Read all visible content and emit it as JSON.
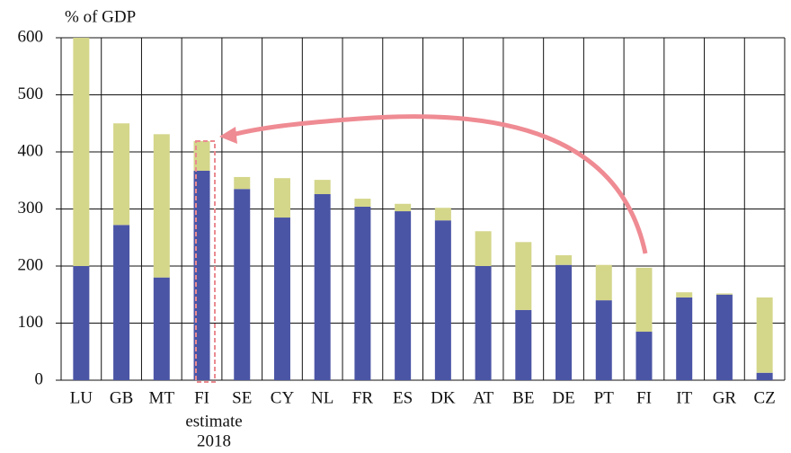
{
  "chart_data": {
    "type": "stacked-bar",
    "y_label": "% of GDP",
    "categories": [
      "LU",
      "GB",
      "MT",
      "FI",
      "SE",
      "CY",
      "NL",
      "FR",
      "ES",
      "DK",
      "AT",
      "BE",
      "DE",
      "PT",
      "FI",
      "IT",
      "GR",
      "CZ"
    ],
    "annotations": [
      "estimate",
      "2018"
    ],
    "series": [
      {
        "color": "#4b55a5",
        "values": [
          200,
          272,
          180,
          367,
          335,
          285,
          326,
          304,
          296,
          280,
          200,
          123,
          202,
          140,
          85,
          145,
          150,
          13
        ]
      },
      {
        "color": "#d4d68a",
        "values": [
          400,
          178,
          251,
          52,
          21,
          69,
          25,
          14,
          13,
          22,
          61,
          119,
          17,
          62,
          112,
          9,
          2,
          132
        ]
      }
    ],
    "ylim": [
      0,
      600
    ],
    "yticks": [
      0,
      100,
      200,
      300,
      400,
      500,
      600
    ],
    "grid": true
  }
}
